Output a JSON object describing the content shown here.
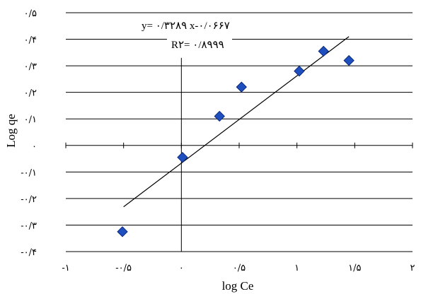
{
  "chart_data": {
    "type": "scatter",
    "title": "",
    "xlabel": "log Ce",
    "ylabel": "Log qe",
    "xlim": [
      -1,
      2
    ],
    "ylim": [
      -0.4,
      0.5
    ],
    "grid": "horizontal",
    "x_ticks": [
      -1,
      -0.5,
      0,
      0.5,
      1,
      1.5,
      2
    ],
    "x_tick_labels": [
      "-۱",
      "-۰/۵",
      "۰",
      "۰/۵",
      "۱",
      "۱/۵",
      "۲"
    ],
    "y_ticks": [
      0.5,
      0.4,
      0.3,
      0.2,
      0.1,
      0,
      -0.1,
      -0.2,
      -0.3,
      -0.4
    ],
    "y_tick_labels": [
      "۰/۵",
      "۰/۴",
      "۰/۳",
      "۰/۲",
      "۰/۱",
      "۰",
      "-۰/۱",
      "-۰/۲",
      "-۰/۳",
      "-۰/۴"
    ],
    "series": [
      {
        "marker": "diamond",
        "color": "#1f4fbf",
        "x": [
          -0.51,
          0.01,
          0.33,
          0.52,
          1.02,
          1.23,
          1.45
        ],
        "y": [
          -0.325,
          -0.045,
          0.11,
          0.22,
          0.28,
          0.355,
          0.32
        ]
      }
    ],
    "trendline": {
      "slope": 0.3289,
      "intercept": -0.0667,
      "x_range": [
        -0.5,
        1.45
      ],
      "color": "#000000"
    },
    "annotations": {
      "equation": "y= ۰/۳۲۸۹ x-۰/۰۶۶۷",
      "r_squared": "R۲= ۰/۸۹۹۹"
    }
  }
}
